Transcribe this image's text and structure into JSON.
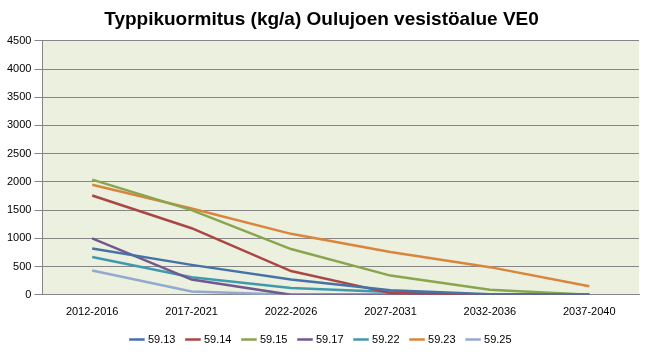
{
  "chart_data": {
    "type": "line",
    "title": "Typpikuormitus (kg/a) Oulujoen vesistöalue VE0",
    "categories": [
      "2012-2016",
      "2017-2021",
      "2022-2026",
      "2027-2031",
      "2032-2036",
      "2037-2040"
    ],
    "series": [
      {
        "name": "59.13",
        "color": "#4572a7",
        "values": [
          820,
          530,
          270,
          80,
          10,
          0
        ]
      },
      {
        "name": "59.14",
        "color": "#aa4643",
        "values": [
          1760,
          1180,
          420,
          30,
          0,
          0
        ]
      },
      {
        "name": "59.15",
        "color": "#89a54e",
        "values": [
          2040,
          1500,
          810,
          340,
          90,
          0
        ]
      },
      {
        "name": "59.17",
        "color": "#71588f",
        "values": [
          1000,
          270,
          0,
          0,
          0,
          0
        ]
      },
      {
        "name": "59.22",
        "color": "#4198af",
        "values": [
          670,
          310,
          120,
          50,
          0,
          0
        ]
      },
      {
        "name": "59.23",
        "color": "#db843d",
        "values": [
          1950,
          1530,
          1080,
          760,
          490,
          150
        ]
      },
      {
        "name": "59.25",
        "color": "#93a9cf",
        "values": [
          430,
          60,
          0,
          0,
          0,
          0
        ]
      }
    ],
    "ylim": [
      0,
      4500
    ],
    "yticks": [
      0,
      500,
      1000,
      1500,
      2000,
      2500,
      3000,
      3500,
      4000,
      4500
    ],
    "grid": true,
    "legend": "bottom"
  }
}
